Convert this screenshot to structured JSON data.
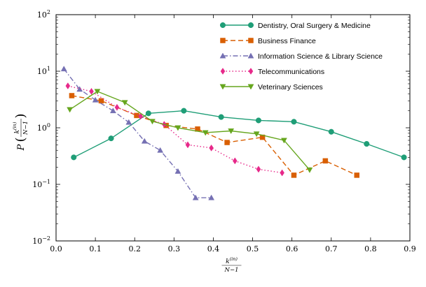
{
  "chart_data": {
    "type": "line",
    "xlim": [
      0,
      0.9
    ],
    "ylim": [
      0.01,
      100
    ],
    "yscale": "log",
    "x_ticks": [
      0.0,
      0.1,
      0.2,
      0.3,
      0.4,
      0.5,
      0.6,
      0.7,
      0.8,
      0.9
    ],
    "x_tick_labels": [
      "0.0",
      "0.1",
      "0.2",
      "0.3",
      "0.4",
      "0.5",
      "0.6",
      "0.7",
      "0.8",
      "0.9"
    ],
    "y_ticks": [
      0.01,
      0.1,
      1,
      10,
      100
    ],
    "y_tick_labels": [
      {
        "base": "10",
        "exp": "−2"
      },
      {
        "base": "10",
        "exp": "−1"
      },
      {
        "base": "10",
        "exp": "0"
      },
      {
        "base": "10",
        "exp": "1"
      },
      {
        "base": "10",
        "exp": "2"
      }
    ],
    "xlabel": {
      "numerator": "k",
      "superscript": "(in)",
      "denominator": "N−1"
    },
    "ylabel": {
      "prefix": "P",
      "numerator": "k",
      "superscript": "(in)",
      "denominator": "N−1"
    },
    "grid": false,
    "legend_position": "top-right",
    "series": [
      {
        "name": "Dentistry, Oral Surgery & Medicine",
        "color": "#1f9e77",
        "marker": "circle",
        "dash": "solid",
        "x": [
          0.045,
          0.14,
          0.235,
          0.325,
          0.42,
          0.515,
          0.605,
          0.7,
          0.79,
          0.885
        ],
        "y": [
          0.3,
          0.65,
          1.8,
          2.0,
          1.55,
          1.35,
          1.28,
          0.85,
          0.52,
          0.3
        ]
      },
      {
        "name": "Business Finance",
        "color": "#d95f02",
        "marker": "square",
        "dash": "dashed",
        "x": [
          0.04,
          0.115,
          0.205,
          0.28,
          0.36,
          0.435,
          0.525,
          0.605,
          0.685,
          0.765
        ],
        "y": [
          3.7,
          3.0,
          1.65,
          1.1,
          0.95,
          0.55,
          0.68,
          0.145,
          0.26,
          0.145
        ]
      },
      {
        "name": "Information Science & Library Science",
        "color": "#7570b3",
        "marker": "triangle-up",
        "dash": "dashdot",
        "x": [
          0.02,
          0.06,
          0.1,
          0.145,
          0.185,
          0.225,
          0.265,
          0.31,
          0.355,
          0.395
        ],
        "y": [
          11.0,
          4.8,
          3.1,
          2.0,
          1.25,
          0.58,
          0.4,
          0.17,
          0.058,
          0.058
        ]
      },
      {
        "name": "Telecommunications",
        "color": "#e7298a",
        "marker": "diamond",
        "dash": "dotted",
        "x": [
          0.03,
          0.09,
          0.155,
          0.215,
          0.275,
          0.335,
          0.395,
          0.455,
          0.515,
          0.575
        ],
        "y": [
          5.5,
          4.4,
          2.3,
          1.6,
          1.15,
          0.5,
          0.44,
          0.26,
          0.185,
          0.16
        ]
      },
      {
        "name": "Veterinary Sciences",
        "color": "#66a61e",
        "marker": "triangle-down",
        "dash": "solid",
        "x": [
          0.035,
          0.105,
          0.175,
          0.245,
          0.31,
          0.38,
          0.445,
          0.51,
          0.58,
          0.645
        ],
        "y": [
          2.1,
          4.4,
          2.8,
          1.3,
          1.0,
          0.82,
          0.88,
          0.78,
          0.6,
          0.18
        ]
      }
    ]
  }
}
